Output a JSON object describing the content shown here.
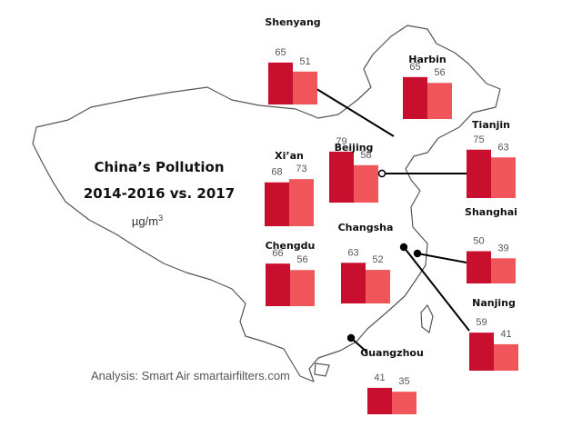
{
  "chart_data": {
    "type": "bar",
    "title": "China’s Pollution",
    "subtitle": "2014-2016 vs. 2017",
    "unit": "µg/m",
    "unit_sup": "3",
    "credit": "Analysis: Smart Air smartairfilters.com",
    "series": [
      {
        "period": "2014-2016",
        "color": "#c8102e"
      },
      {
        "period": "2017",
        "color": "#f0555a"
      }
    ],
    "cities": [
      {
        "name": "Shenyang",
        "values": [
          65,
          51
        ]
      },
      {
        "name": "Harbin",
        "values": [
          65,
          56
        ]
      },
      {
        "name": "Tianjin",
        "values": [
          75,
          63
        ]
      },
      {
        "name": "Beijing",
        "values": [
          79,
          58
        ]
      },
      {
        "name": "Xi’an",
        "values": [
          68,
          73
        ]
      },
      {
        "name": "Shanghai",
        "values": [
          50,
          39
        ]
      },
      {
        "name": "Changsha",
        "values": [
          63,
          52
        ]
      },
      {
        "name": "Chengdu",
        "values": [
          66,
          56
        ]
      },
      {
        "name": "Nanjing",
        "values": [
          59,
          41
        ]
      },
      {
        "name": "Guangzhou",
        "values": [
          41,
          35
        ]
      }
    ]
  }
}
